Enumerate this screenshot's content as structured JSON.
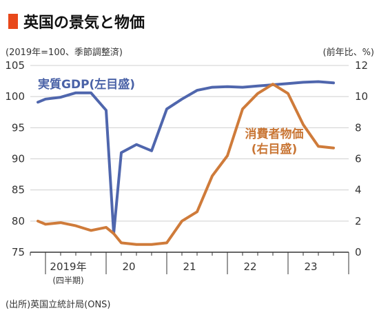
{
  "title": "英国の景気と物価",
  "colors": {
    "marker": "#e8481a",
    "gdp": "#4f66ad",
    "cpi": "#cf7b3a",
    "axis": "#333333",
    "grid": "#cfcfcf"
  },
  "chart_data": {
    "type": "line",
    "left_unit": "(2019年=100、季節調整済)",
    "right_unit": "(前年比、%)",
    "left_ylim": [
      75,
      105
    ],
    "left_ticks": [
      "105",
      "100",
      "95",
      "90",
      "85",
      "80",
      "75"
    ],
    "left_tick_values": [
      105,
      100,
      95,
      90,
      85,
      80,
      75
    ],
    "right_ylim": [
      0,
      12
    ],
    "right_ticks": [
      "12",
      "10",
      "8",
      "6",
      "4",
      "2",
      "0"
    ],
    "right_tick_values": [
      12,
      10,
      8,
      6,
      4,
      2,
      0
    ],
    "x_labels": [
      {
        "label": "2019年",
        "sub": "(四半期)",
        "pos": 2.5
      },
      {
        "label": "20",
        "sub": "",
        "pos": 6.5
      },
      {
        "label": "21",
        "sub": "",
        "pos": 10.5
      },
      {
        "label": "22",
        "sub": "",
        "pos": 14.5
      },
      {
        "label": "23",
        "sub": "",
        "pos": 18.5
      }
    ],
    "x_range": [
      0,
      21
    ],
    "x_ticks": [
      0,
      1,
      2,
      3,
      4,
      5,
      6,
      7,
      8,
      9,
      10,
      11,
      12,
      13,
      14,
      15,
      16,
      17,
      18,
      19,
      20,
      21
    ],
    "x_year_ticks": [
      1,
      5,
      9,
      13,
      17,
      21
    ],
    "series": [
      {
        "name": "実質GDP(左目盛)",
        "axis": "left",
        "x": [
          0.5,
          1,
          2,
          3,
          4,
          5,
          5.5,
          6,
          7,
          8,
          9,
          10,
          11,
          12,
          13,
          14,
          15,
          16,
          17,
          18,
          19,
          20
        ],
        "values": [
          99.1,
          99.6,
          99.9,
          100.6,
          100.6,
          97.8,
          78.0,
          91.0,
          92.3,
          91.3,
          98.0,
          99.6,
          101.0,
          101.5,
          101.6,
          101.5,
          101.7,
          101.9,
          102.1,
          102.3,
          102.4,
          102.2
        ]
      },
      {
        "name": "消費者物価(右目盛)",
        "axis": "right",
        "x": [
          0.5,
          1,
          2,
          3,
          4,
          5,
          5.5,
          6,
          7,
          8,
          9,
          10,
          11,
          12,
          13,
          14,
          15,
          16,
          17,
          18,
          19,
          20
        ],
        "values": [
          2.0,
          1.8,
          1.9,
          1.7,
          1.4,
          1.6,
          1.2,
          0.6,
          0.5,
          0.5,
          0.6,
          2.0,
          2.6,
          4.9,
          6.2,
          9.2,
          10.2,
          10.8,
          10.2,
          8.2,
          6.8,
          6.7
        ]
      }
    ],
    "gdp_label": "実質GDP(左目盛)",
    "cpi_label_line1": "消費者物価",
    "cpi_label_line2": "(右目盛)"
  },
  "source": "(出所)英国立統計局(ONS)"
}
